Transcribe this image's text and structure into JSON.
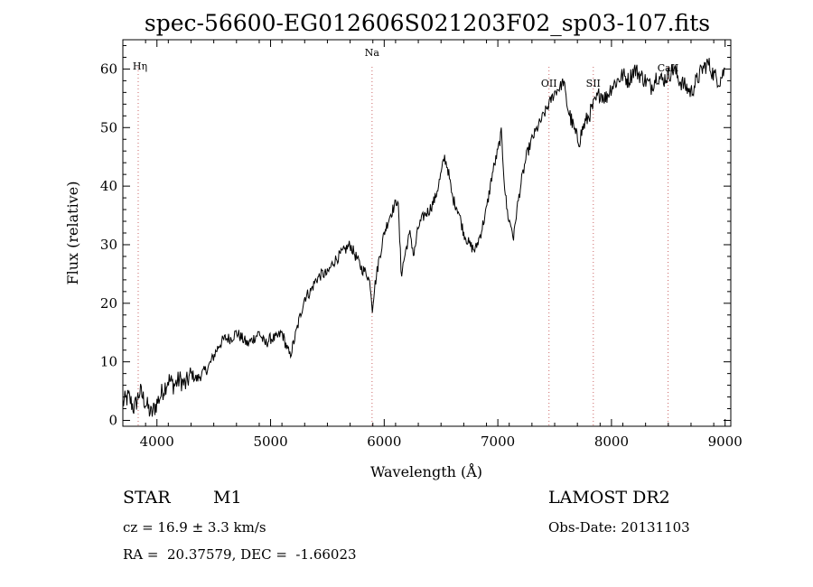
{
  "chart_data": {
    "type": "line",
    "title": "spec-56600-EG012606S021203F02_sp03-107.fits",
    "xlabel": "Wavelength (Å)",
    "ylabel": "Flux (relative)",
    "xlim": [
      3700,
      9050
    ],
    "ylim": [
      -1,
      65
    ],
    "xticks": [
      4000,
      5000,
      6000,
      7000,
      8000,
      9000
    ],
    "yticks": [
      0,
      10,
      20,
      30,
      40,
      50,
      60
    ],
    "grid": false,
    "spectrum": {
      "x": [
        3700,
        3750,
        3800,
        3850,
        3900,
        3950,
        4000,
        4050,
        4100,
        4150,
        4200,
        4250,
        4300,
        4350,
        4400,
        4450,
        4500,
        4550,
        4600,
        4650,
        4700,
        4750,
        4800,
        4850,
        4900,
        4950,
        5000,
        5050,
        5100,
        5150,
        5170,
        5200,
        5250,
        5300,
        5350,
        5400,
        5450,
        5500,
        5550,
        5600,
        5650,
        5700,
        5750,
        5800,
        5850,
        5880,
        5895,
        5910,
        5950,
        6000,
        6050,
        6100,
        6120,
        6150,
        6180,
        6200,
        6230,
        6260,
        6300,
        6350,
        6400,
        6450,
        6500,
        6530,
        6560,
        6600,
        6650,
        6700,
        6750,
        6800,
        6850,
        6900,
        6950,
        7000,
        7030,
        7060,
        7080,
        7100,
        7120,
        7140,
        7160,
        7200,
        7250,
        7300,
        7350,
        7400,
        7450,
        7500,
        7550,
        7580,
        7600,
        7620,
        7650,
        7680,
        7700,
        7720,
        7750,
        7800,
        7850,
        7900,
        7950,
        8000,
        8050,
        8100,
        8150,
        8200,
        8250,
        8300,
        8350,
        8400,
        8450,
        8500,
        8550,
        8600,
        8650,
        8700,
        8750,
        8800,
        8850,
        8900,
        8950,
        9000
      ],
      "y": [
        3,
        4,
        2,
        5,
        3,
        1,
        3,
        5,
        7,
        6,
        7,
        6,
        8,
        7,
        8,
        9,
        11,
        13,
        14,
        14,
        15,
        14,
        13,
        14,
        15,
        13,
        14,
        14,
        15,
        12,
        11,
        13,
        17,
        21,
        22,
        24,
        25,
        25,
        27,
        28,
        29,
        30,
        28,
        26,
        25,
        23,
        19,
        22,
        27,
        32,
        35,
        37,
        38,
        25,
        28,
        30,
        32,
        28,
        33,
        35,
        36,
        38,
        42,
        45,
        43,
        38,
        36,
        32,
        30,
        29,
        32,
        36,
        42,
        46,
        49,
        40,
        36,
        34,
        33,
        31,
        35,
        40,
        45,
        48,
        50,
        52,
        54,
        56,
        57,
        58,
        55,
        53,
        51,
        49,
        48,
        48,
        50,
        52,
        54,
        56,
        55,
        57,
        58,
        59,
        58,
        60,
        59,
        58,
        57,
        59,
        58,
        59,
        60,
        58,
        57,
        56,
        58,
        60,
        61,
        59,
        58,
        60
      ]
    },
    "lines": [
      {
        "label": "Hη",
        "x": 3835
      },
      {
        "label": "Na",
        "x": 5893
      },
      {
        "label": "OII",
        "x": 7450
      },
      {
        "label": "SII",
        "x": 7840
      },
      {
        "label": "CaII",
        "x": 8498
      }
    ],
    "line_color": "#cc6666",
    "spectrum_color": "#000000"
  },
  "info": {
    "class": "STAR",
    "subclass": "M1",
    "survey": "LAMOST DR2",
    "cz": "cz = 16.9 ± 3.3 km/s",
    "obs_date": "Obs-Date: 20131103",
    "radec": "RA =  20.37579, DEC =  -1.66023"
  }
}
